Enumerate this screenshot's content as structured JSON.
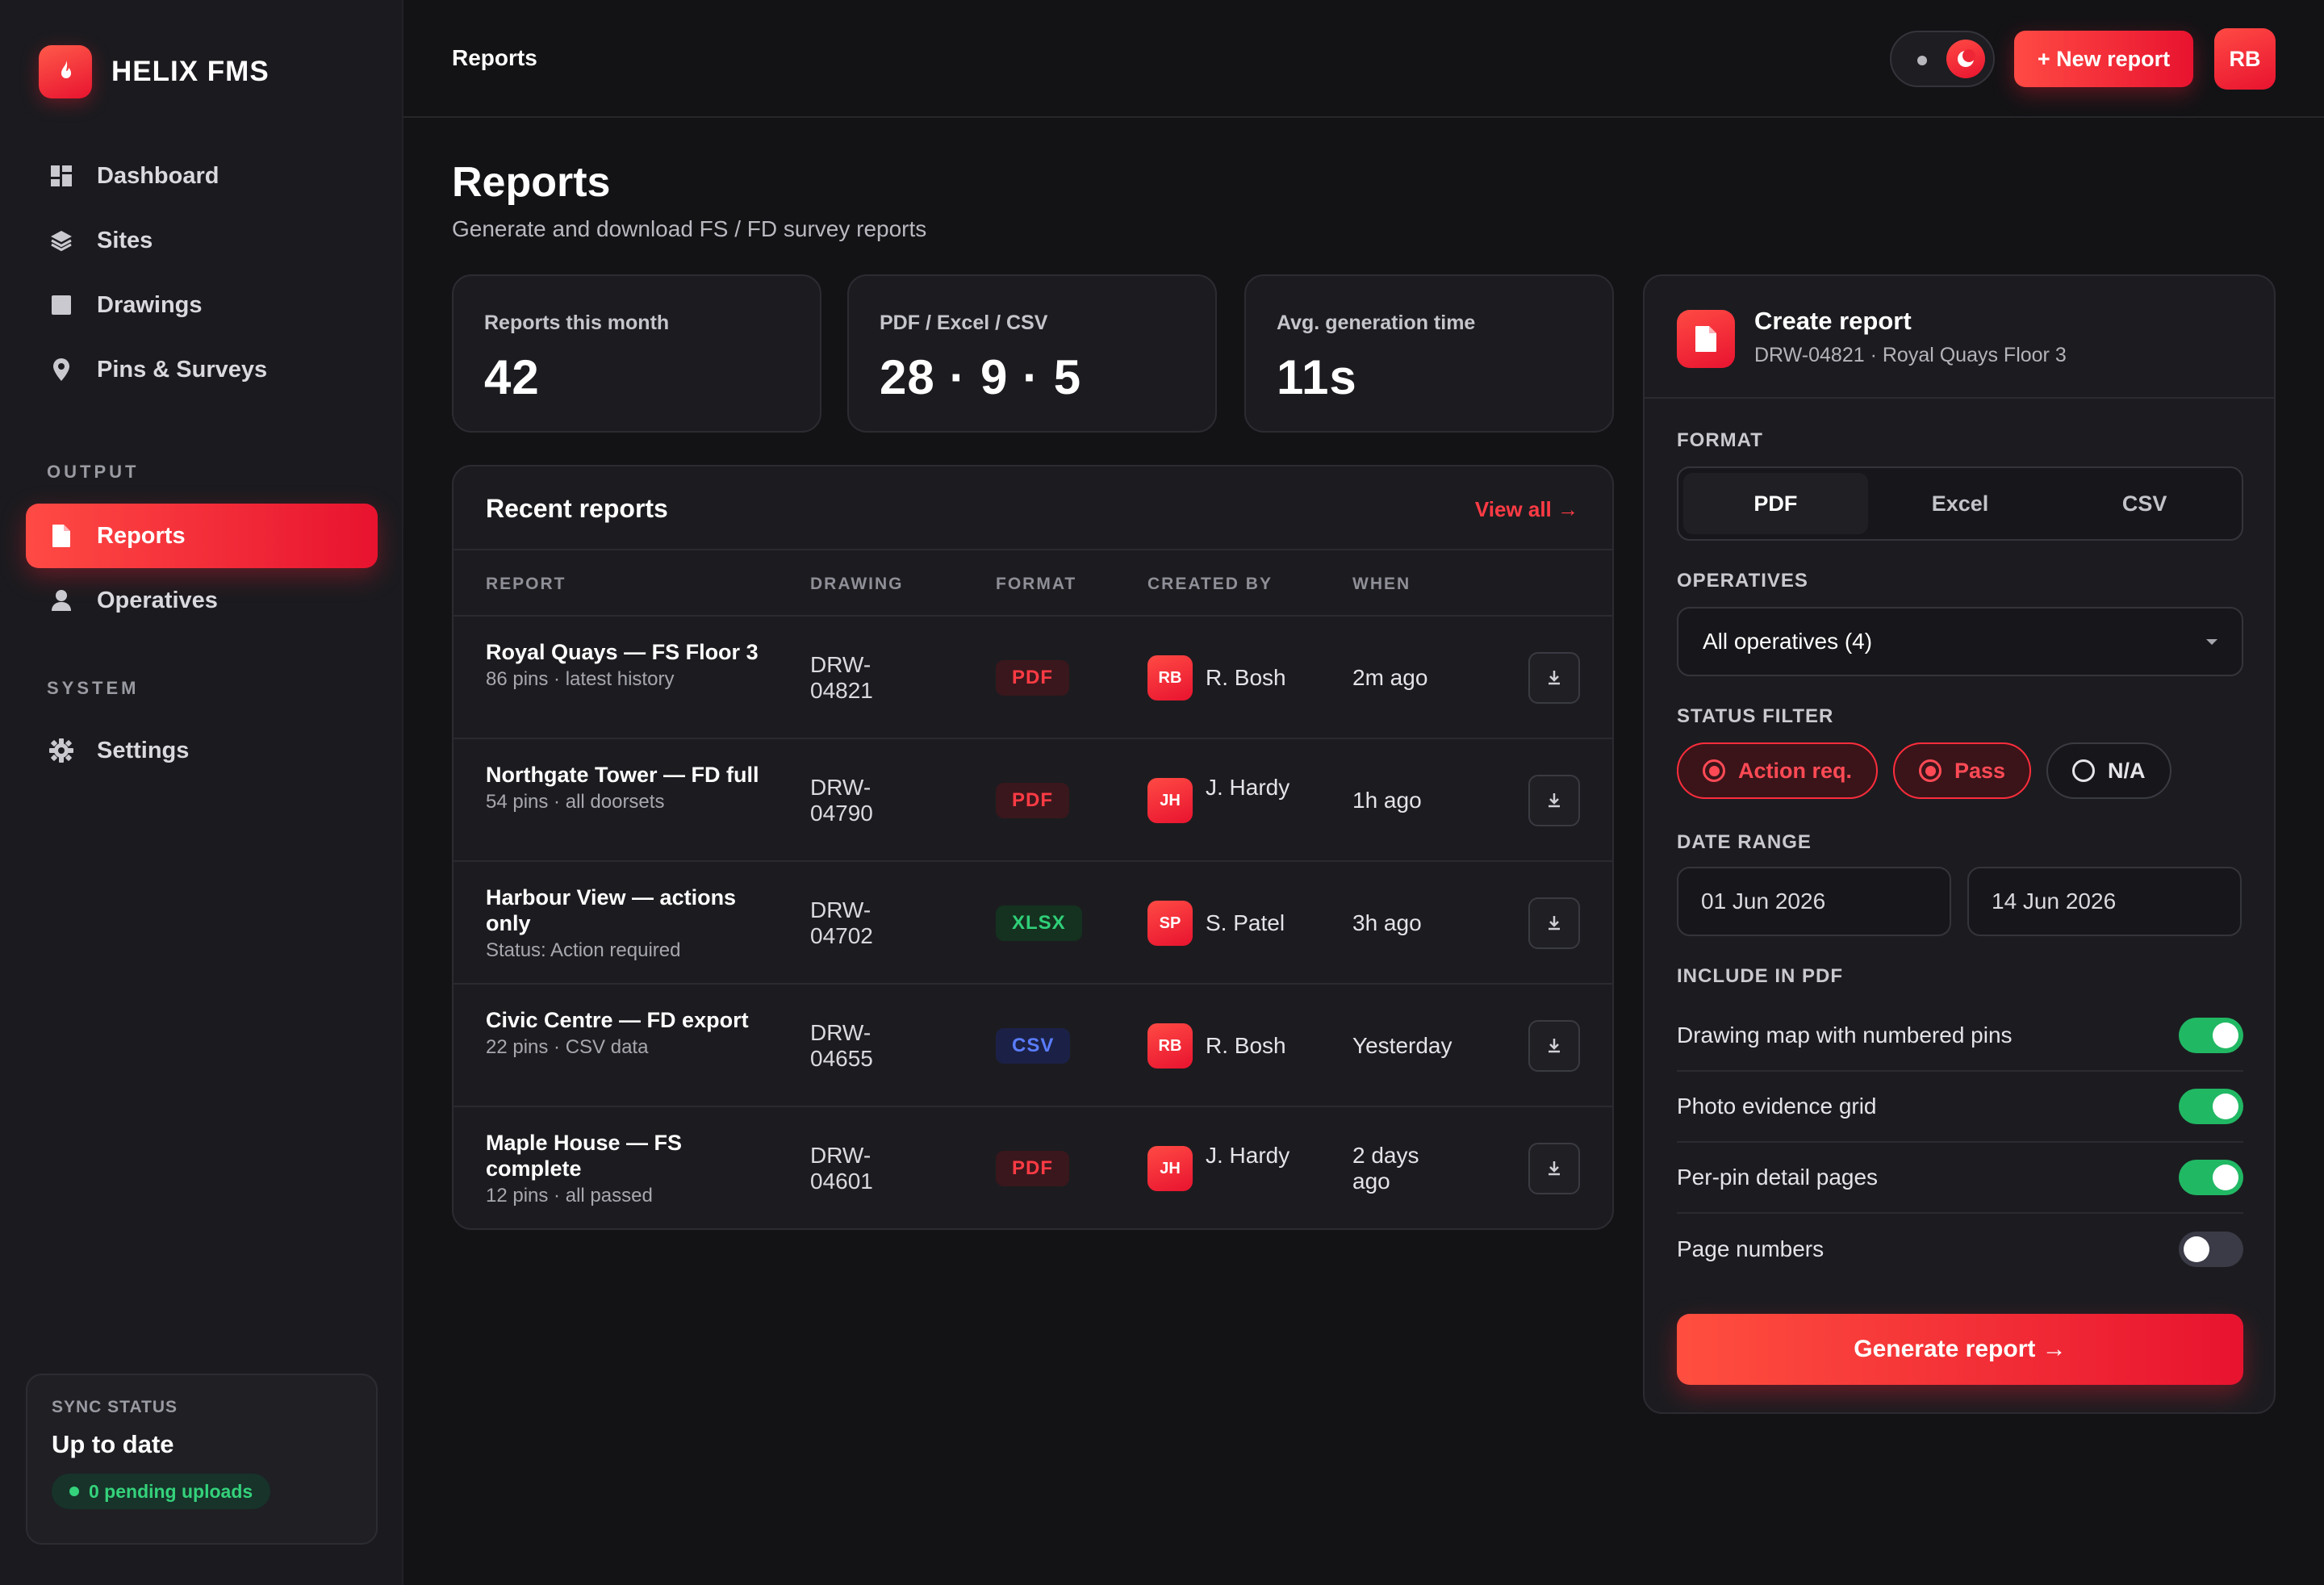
{
  "brand": {
    "name": "HELIX FMS"
  },
  "sidebar": {
    "items": [
      {
        "label": "Dashboard",
        "icon": "dashboard-grid-icon"
      },
      {
        "label": "Sites",
        "icon": "layers-icon"
      },
      {
        "label": "Drawings",
        "icon": "drawing-square-icon"
      },
      {
        "label": "Pins & Surveys",
        "icon": "map-pin-icon"
      }
    ],
    "output_label": "OUTPUT",
    "output_items": [
      {
        "label": "Reports",
        "icon": "document-icon",
        "active": true
      },
      {
        "label": "Operatives",
        "icon": "user-icon"
      }
    ],
    "system_label": "SYSTEM",
    "system_items": [
      {
        "label": "Settings",
        "icon": "gear-icon"
      }
    ]
  },
  "sync": {
    "label": "SYNC STATUS",
    "title": "Up to date",
    "pill": "0 pending uploads"
  },
  "topbar": {
    "breadcrumb": "Reports",
    "new_button": "+ New report",
    "avatar": "RB"
  },
  "page": {
    "title": "Reports",
    "subtitle": "Generate and download FS / FD survey reports"
  },
  "stats": [
    {
      "label": "Reports this month",
      "value": "42"
    },
    {
      "label": "PDF / Excel / CSV",
      "value": "28 · 9 · 5"
    },
    {
      "label": "Avg. generation time",
      "value": "11s"
    }
  ],
  "recent": {
    "title": "Recent reports",
    "view_all": "View all →",
    "columns": [
      "REPORT",
      "DRAWING",
      "FORMAT",
      "CREATED BY",
      "WHEN"
    ],
    "rows": [
      {
        "name": "Royal Quays — FS Floor 3",
        "sub": "86 pins · latest history",
        "drawing": "DRW-04821",
        "format": "PDF",
        "creator_initials": "RB",
        "creator": "R. Bosh",
        "when": "2m ago"
      },
      {
        "name": "Northgate Tower — FD full",
        "sub": "54 pins · all doorsets",
        "drawing": "DRW-04790",
        "format": "PDF",
        "creator_initials": "JH",
        "creator": "J. Hardy",
        "when": "1h ago"
      },
      {
        "name": "Harbour View — actions only",
        "sub": "Status: Action required",
        "drawing": "DRW-04702",
        "format": "XLSX",
        "creator_initials": "SP",
        "creator": "S. Patel",
        "when": "3h ago"
      },
      {
        "name": "Civic Centre — FD export",
        "sub": "22 pins · CSV data",
        "drawing": "DRW-04655",
        "format": "CSV",
        "creator_initials": "RB",
        "creator": "R. Bosh",
        "when": "Yesterday"
      },
      {
        "name": "Maple House — FS complete",
        "sub": "12 pins · all passed",
        "drawing": "DRW-04601",
        "format": "PDF",
        "creator_initials": "JH",
        "creator": "J. Hardy",
        "when": "2 days ago"
      }
    ]
  },
  "create": {
    "title": "Create report",
    "subtitle": "DRW-04821 · Royal Quays Floor 3",
    "format_label": "FORMAT",
    "formats": [
      "PDF",
      "Excel",
      "CSV"
    ],
    "format_selected": "PDF",
    "operatives_label": "OPERATIVES",
    "operatives_value": "All operatives (4)",
    "status_label": "STATUS FILTER",
    "status_chips": [
      {
        "label": "Action req.",
        "on": true
      },
      {
        "label": "Pass",
        "on": true
      },
      {
        "label": "N/A",
        "on": false
      }
    ],
    "date_label": "DATE RANGE",
    "date_from": "01 Jun 2026",
    "date_to": "14 Jun 2026",
    "include_label": "INCLUDE IN PDF",
    "options": [
      {
        "label": "Drawing map with numbered pins",
        "on": true
      },
      {
        "label": "Photo evidence grid",
        "on": true
      },
      {
        "label": "Per-pin detail pages",
        "on": true
      },
      {
        "label": "Page numbers",
        "on": false
      }
    ],
    "generate_button": "Generate report →"
  },
  "colors": {
    "accent": "#e8132f",
    "pdf": "#ff3b44",
    "xlsx": "#2fcf78",
    "csv": "#5a7cff",
    "switch_on": "#21b864"
  }
}
